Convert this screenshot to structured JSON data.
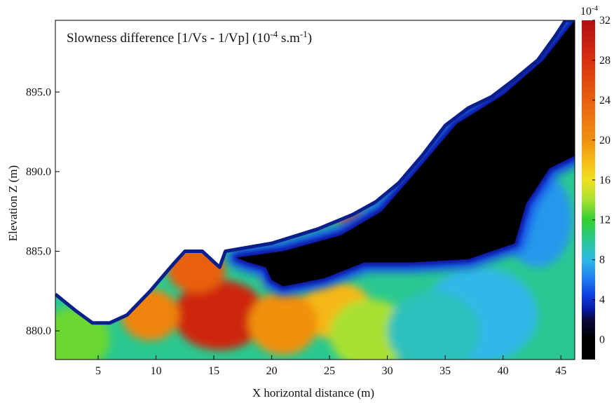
{
  "chart_data": {
    "type": "heatmap",
    "title": "Slowness difference [1/Vs - 1/Vp] (10",
    "title_exp": "-4",
    "title_mid": " s.m",
    "title_exp2": "-1",
    "title_end": ")",
    "xlabel": "X horizontal distance (m)",
    "ylabel": "Elevation Z (m)",
    "xlim": [
      1.3,
      46.2
    ],
    "ylim": [
      878.2,
      899.5
    ],
    "x_ticks": [
      5,
      10,
      15,
      20,
      25,
      30,
      35,
      40,
      45
    ],
    "y_ticks": [
      880,
      885,
      890,
      895
    ],
    "colorbar": {
      "range": [
        -2,
        32
      ],
      "ticks": [
        0,
        4,
        8,
        12,
        16,
        20,
        24,
        28,
        32
      ],
      "multiplier": "10",
      "multiplier_exp": "-4",
      "stops": [
        [
          0,
          "#000000"
        ],
        [
          2,
          "#0a0a3c"
        ],
        [
          3,
          "#0818a0"
        ],
        [
          4.5,
          "#1040e0"
        ],
        [
          6,
          "#1e78f0"
        ],
        [
          8,
          "#30b8e8"
        ],
        [
          10,
          "#2ac890"
        ],
        [
          12,
          "#30d030"
        ],
        [
          14,
          "#a8e030"
        ],
        [
          16,
          "#f0e020"
        ],
        [
          18,
          "#f5b818"
        ],
        [
          20,
          "#f09010"
        ],
        [
          24,
          "#e86010"
        ],
        [
          28,
          "#d83010"
        ],
        [
          32,
          "#b01010"
        ]
      ]
    },
    "surface_profile": [
      [
        1.3,
        882.3
      ],
      [
        3.0,
        881.3
      ],
      [
        4.5,
        880.5
      ],
      [
        6.0,
        880.5
      ],
      [
        7.5,
        881.0
      ],
      [
        9.5,
        882.5
      ],
      [
        11.5,
        884.2
      ],
      [
        12.5,
        885.0
      ],
      [
        14.0,
        885.0
      ],
      [
        15.5,
        884.0
      ],
      [
        16.0,
        885.0
      ],
      [
        20.0,
        885.5
      ],
      [
        24.0,
        886.4
      ],
      [
        27.0,
        887.3
      ],
      [
        29.0,
        888.1
      ],
      [
        31.0,
        889.3
      ],
      [
        33.0,
        891.0
      ],
      [
        35.0,
        892.9
      ],
      [
        37.0,
        894.0
      ],
      [
        39.0,
        894.7
      ],
      [
        41.0,
        895.8
      ],
      [
        43.0,
        897.0
      ],
      [
        44.5,
        898.5
      ],
      [
        45.4,
        899.5
      ],
      [
        46.2,
        899.5
      ]
    ],
    "field_blobs": [
      {
        "x": 15.5,
        "z": 881.0,
        "value": 29,
        "sx": 4.0,
        "sz": 2.2
      },
      {
        "x": 13.5,
        "z": 883.8,
        "value": 24,
        "sx": 2.5,
        "sz": 1.4
      },
      {
        "x": 9.5,
        "z": 881.0,
        "value": 21,
        "sx": 2.5,
        "sz": 1.6
      },
      {
        "x": 25.5,
        "z": 881.3,
        "value": 18,
        "sx": 3.2,
        "sz": 1.8
      },
      {
        "x": 21.0,
        "z": 880.5,
        "value": 20,
        "sx": 3.0,
        "sz": 2.0
      },
      {
        "x": 28.5,
        "z": 879.8,
        "value": 14,
        "sx": 3.5,
        "sz": 2.2
      },
      {
        "x": 27.0,
        "z": 887.0,
        "value": 24,
        "sx": 1.4,
        "sz": 0.5
      },
      {
        "x": 30.8,
        "z": 889.4,
        "value": 22,
        "sx": 0.6,
        "sz": 0.5
      },
      {
        "x": 19.5,
        "z": 883.3,
        "value": 14,
        "sx": 0.5,
        "sz": 0.35
      },
      {
        "x": 40.5,
        "z": 895.5,
        "value": 11,
        "sx": 1.8,
        "sz": 0.8
      },
      {
        "x": 3.0,
        "z": 879.5,
        "value": 13,
        "sx": 3.0,
        "sz": 2.0
      },
      {
        "x": 43.0,
        "z": 887.0,
        "value": 7,
        "sx": 3.0,
        "sz": 3.0
      },
      {
        "x": 38.0,
        "z": 881.0,
        "value": 8,
        "sx": 5.0,
        "sz": 3.0
      },
      {
        "x": 34.0,
        "z": 880.0,
        "value": 9,
        "sx": 4.0,
        "sz": 2.5
      }
    ],
    "low_zone": [
      [
        22.0,
        885.2
      ],
      [
        26.0,
        886.0
      ],
      [
        29.5,
        887.5
      ],
      [
        32.5,
        890.0
      ],
      [
        36.0,
        893.0
      ],
      [
        40.0,
        894.8
      ],
      [
        43.5,
        897.0
      ],
      [
        46.2,
        899.5
      ],
      [
        46.2,
        891.0
      ],
      [
        44.0,
        890.2
      ],
      [
        42.0,
        888.0
      ],
      [
        41.0,
        885.5
      ],
      [
        37.0,
        884.5
      ],
      [
        32.0,
        884.3
      ],
      [
        28.0,
        884.3
      ],
      [
        24.5,
        883.3
      ],
      [
        21.0,
        882.8
      ],
      [
        20.0,
        883.2
      ],
      [
        19.5,
        884.0
      ],
      [
        18.0,
        884.3
      ],
      [
        17.0,
        884.6
      ],
      [
        21.0,
        885.0
      ]
    ]
  }
}
